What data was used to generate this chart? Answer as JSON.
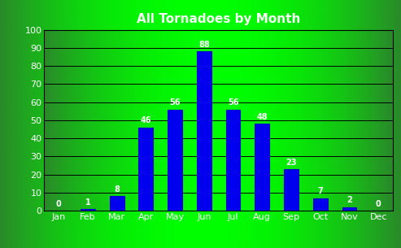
{
  "title": "All Tornadoes by Month",
  "months": [
    "Jan",
    "Feb",
    "Mar",
    "Apr",
    "May",
    "Jun",
    "Jul",
    "Aug",
    "Sep",
    "Oct",
    "Nov",
    "Dec"
  ],
  "values": [
    0,
    1,
    8,
    46,
    56,
    88,
    56,
    48,
    23,
    7,
    2,
    0
  ],
  "bar_color": "#0000ee",
  "bar_edge_color": "#0000cc",
  "title_color": "white",
  "title_fontsize": 11,
  "value_label_color": "white",
  "value_label_fontsize": 7,
  "tick_color": "white",
  "tick_fontsize": 8,
  "ylim": [
    0,
    100
  ],
  "yticks": [
    0,
    10,
    20,
    30,
    40,
    50,
    60,
    70,
    80,
    90,
    100
  ],
  "grid_color": "#000000",
  "grad_left": "#2a8a2a",
  "grad_center": "#00ff00",
  "grad_right": "#2a8a2a"
}
